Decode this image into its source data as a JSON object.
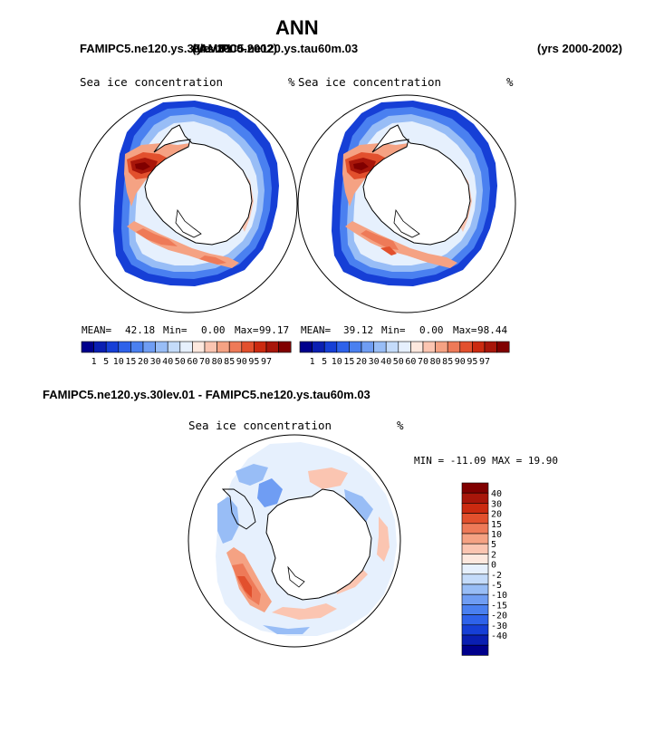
{
  "page_title": "ANN",
  "header": {
    "case_left": "FAMIPC5.ne120.ys.30lev.01",
    "case_overlap": "FAMIPC5.ne120.ys.tau60m.03",
    "years_overlap": "(yrs 2000-2002)",
    "years_right": "(yrs 2000-2002)"
  },
  "diff_title": "FAMIPC5.ne120.ys.30lev.01 - FAMIPC5.ne120.ys.tau60m.03",
  "colors": {
    "ice_scale": [
      "#00008c",
      "#0a1fb2",
      "#163fd6",
      "#2e62ea",
      "#4a80f0",
      "#6f9df3",
      "#98bdf6",
      "#c4dbfa",
      "#e6f0fd",
      "#fde8de",
      "#fbc5b1",
      "#f5a283",
      "#ee7a58",
      "#e2502d",
      "#cb2a10",
      "#a8160a",
      "#800000"
    ],
    "diff_scale": [
      "#00008c",
      "#0a1fb2",
      "#163fd6",
      "#2e62ea",
      "#4a80f0",
      "#6f9df3",
      "#98bdf6",
      "#c4dbfa",
      "#e6f0fd",
      "#fde8de",
      "#fbc5b1",
      "#f5a283",
      "#ee7a58",
      "#e2502d",
      "#cb2a10",
      "#a8160a",
      "#800000"
    ]
  },
  "chart_data": [
    {
      "type": "heatmap",
      "projection": "south-polar-stereographic",
      "title": "Sea ice concentration",
      "units": "%",
      "stats": {
        "mean_label": "MEAN=",
        "mean": "42.18",
        "min_label": "Min=",
        "min": "0.00",
        "max_label": "Max=",
        "max": "99.17"
      },
      "colorbar_levels": [
        "1",
        "5",
        "10",
        "15",
        "20",
        "30",
        "40",
        "50",
        "60",
        "70",
        "80",
        "85",
        "90",
        "95",
        "97"
      ]
    },
    {
      "type": "heatmap",
      "projection": "south-polar-stereographic",
      "title": "Sea ice concentration",
      "units": "%",
      "stats": {
        "mean_label": "MEAN=",
        "mean": "39.12",
        "min_label": "Min=",
        "min": "0.00",
        "max_label": "Max=",
        "max": "98.44"
      },
      "colorbar_levels": [
        "1",
        "5",
        "10",
        "15",
        "20",
        "30",
        "40",
        "50",
        "60",
        "70",
        "80",
        "85",
        "90",
        "95",
        "97"
      ]
    },
    {
      "type": "heatmap",
      "projection": "south-polar-stereographic",
      "title": "Sea ice concentration",
      "units": "%",
      "stats": {
        "text": "MIN = -11.09 MAX =  19.90",
        "min": -11.09,
        "max": 19.9
      },
      "colorbar_levels": [
        "40",
        "30",
        "20",
        "15",
        "10",
        "5",
        "2",
        "0",
        "-2",
        "-5",
        "-10",
        "-15",
        "-20",
        "-30",
        "-40"
      ]
    }
  ]
}
